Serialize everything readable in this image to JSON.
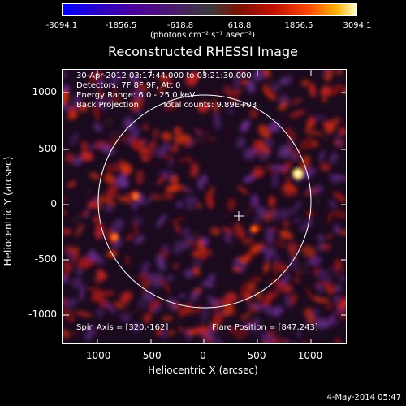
{
  "colorbar": {
    "ticks": [
      "-3094.1",
      "-1856.5",
      "-618.8",
      "618.8",
      "1856.5",
      "3094.1"
    ],
    "units": "(photons cm⁻² s⁻¹ asec⁻²)"
  },
  "title": "Reconstructed RHESSI Image",
  "info": {
    "time_range": "30-Apr-2012 03:17:44.000 to 03:21:30.000",
    "detectors": "Detectors: 7F 8F 9F, Att 0",
    "energy_range": "Energy Range: 6.0 - 25.0 keV",
    "method": "Back Projection",
    "total_counts": "Total counts: 9.89E+03",
    "spin_axis": "Spin Axis = [320,-162]",
    "flare_position": "Flare Position = [847,243]"
  },
  "axes": {
    "xlabel": "Heliocentric X (arcsec)",
    "ylabel": "Heliocentric Y (arcsec)",
    "xticks": [
      "-1000",
      "-500",
      "0",
      "500",
      "1000"
    ],
    "yticks": [
      "1000",
      "500",
      "0",
      "-500",
      "-1000"
    ]
  },
  "datestamp": "4-May-2014 05:47",
  "colors": {
    "background": "#000000",
    "axis": "#ffffff",
    "limb": "#ffffff"
  }
}
